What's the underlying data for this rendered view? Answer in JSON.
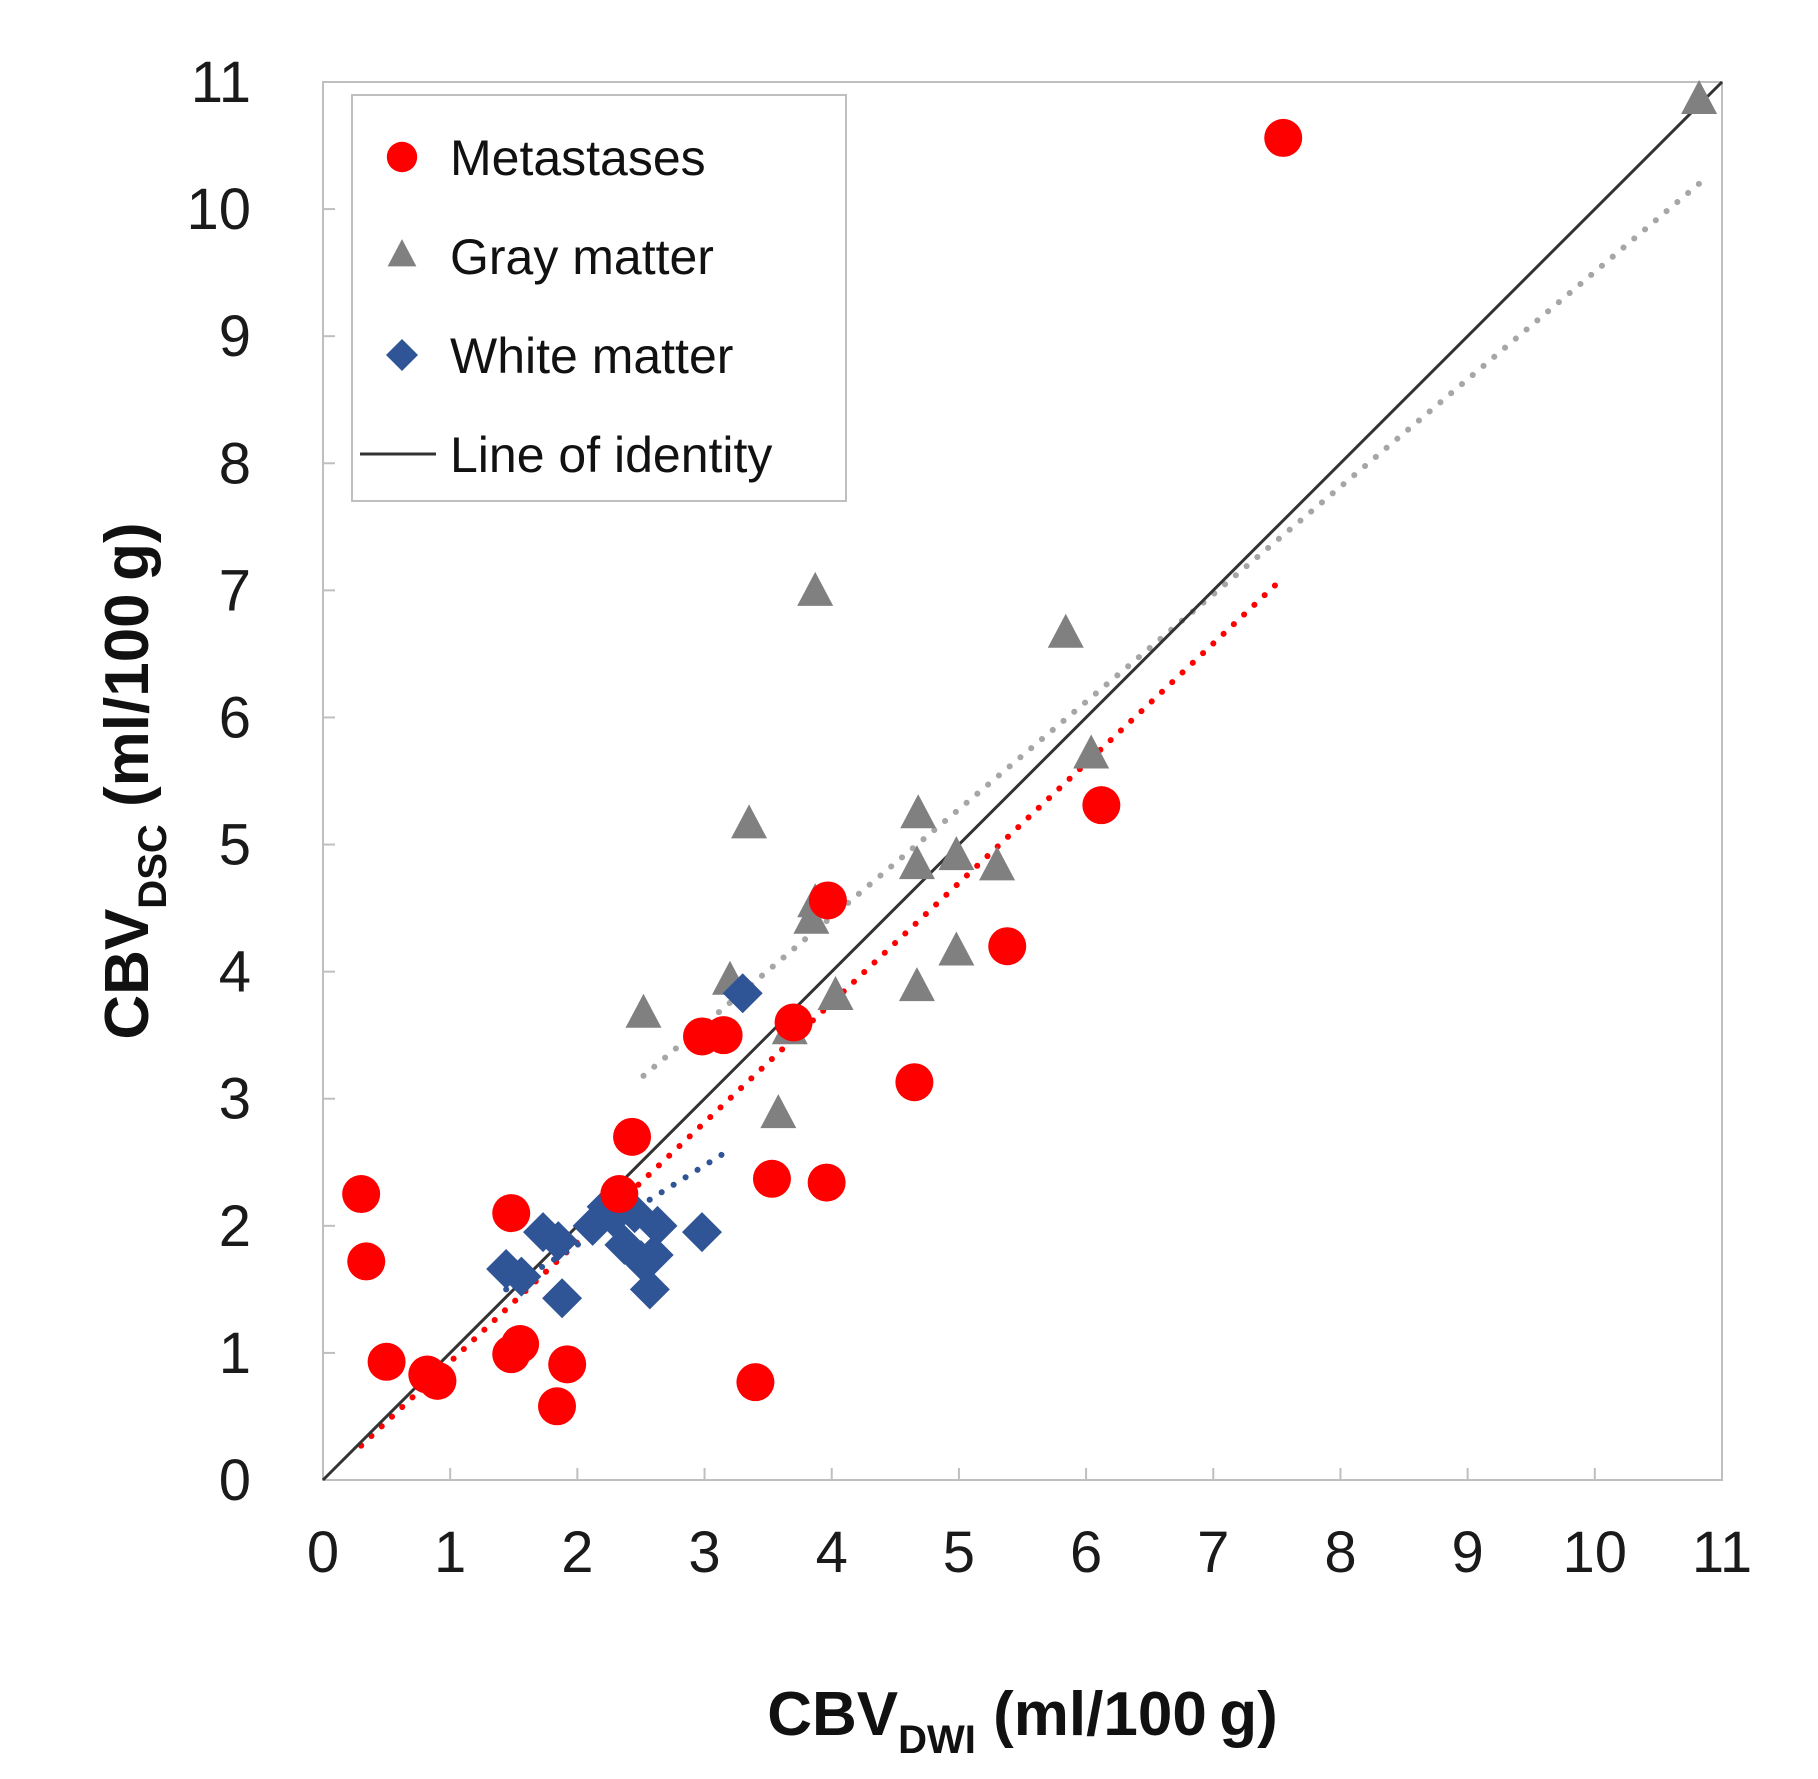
{
  "chart_data": {
    "type": "scatter",
    "title": "",
    "xlabel": {
      "main": "CBV",
      "sub": "DWI",
      "unit": " (ml/100 g)"
    },
    "ylabel": {
      "main": "CBV",
      "sub": "DSC",
      "unit": " (ml/100 g)"
    },
    "xlim": [
      0,
      11
    ],
    "ylim": [
      0,
      11
    ],
    "xticks": [
      "0",
      "1",
      "2",
      "3",
      "4",
      "5",
      "6",
      "7",
      "8",
      "9",
      "10",
      "11"
    ],
    "yticks": [
      "0",
      "1",
      "2",
      "3",
      "4",
      "5",
      "6",
      "7",
      "8",
      "9",
      "10",
      "11"
    ],
    "grid": false,
    "legend_position": "top-left",
    "colors": {
      "metastases": "#ff0000",
      "gray_matter": "#808080",
      "white_matter": "#2f5597",
      "identity": "#333333",
      "frame": "#bfbfbf"
    },
    "series": [
      {
        "name": "Metastases",
        "marker": "circle",
        "color": "#ff0000",
        "points": [
          [
            0.3,
            2.25
          ],
          [
            0.34,
            1.72
          ],
          [
            0.5,
            0.93
          ],
          [
            0.82,
            0.83
          ],
          [
            0.9,
            0.78
          ],
          [
            1.48,
            2.1
          ],
          [
            1.48,
            0.99
          ],
          [
            1.55,
            1.07
          ],
          [
            1.84,
            0.58
          ],
          [
            1.92,
            0.91
          ],
          [
            2.33,
            2.25
          ],
          [
            2.43,
            2.7
          ],
          [
            2.98,
            3.49
          ],
          [
            3.15,
            3.5
          ],
          [
            3.4,
            0.77
          ],
          [
            3.53,
            2.37
          ],
          [
            3.7,
            3.6
          ],
          [
            3.96,
            2.34
          ],
          [
            3.97,
            4.56
          ],
          [
            4.65,
            3.13
          ],
          [
            5.38,
            4.2
          ],
          [
            6.12,
            5.31
          ],
          [
            7.55,
            10.56
          ]
        ]
      },
      {
        "name": "Gray matter",
        "marker": "triangle",
        "color": "#808080",
        "points": [
          [
            2.52,
            3.66
          ],
          [
            3.2,
            3.92
          ],
          [
            3.35,
            5.15
          ],
          [
            3.58,
            2.87
          ],
          [
            3.67,
            3.53
          ],
          [
            3.84,
            4.4
          ],
          [
            3.87,
            4.53
          ],
          [
            3.87,
            6.98
          ],
          [
            4.03,
            3.8
          ],
          [
            4.67,
            3.87
          ],
          [
            4.67,
            4.83
          ],
          [
            4.68,
            5.23
          ],
          [
            4.98,
            4.15
          ],
          [
            4.98,
            4.9
          ],
          [
            5.3,
            4.82
          ],
          [
            5.84,
            6.65
          ],
          [
            6.04,
            5.7
          ],
          [
            10.82,
            10.85
          ]
        ]
      },
      {
        "name": "White matter",
        "marker": "diamond",
        "color": "#2f5597",
        "points": [
          [
            1.44,
            1.66
          ],
          [
            1.56,
            1.6
          ],
          [
            1.73,
            1.95
          ],
          [
            1.85,
            1.88
          ],
          [
            1.88,
            1.43
          ],
          [
            2.12,
            2.0
          ],
          [
            2.23,
            2.15
          ],
          [
            2.28,
            2.07
          ],
          [
            2.37,
            1.85
          ],
          [
            2.45,
            2.1
          ],
          [
            2.5,
            1.73
          ],
          [
            2.57,
            1.5
          ],
          [
            2.6,
            1.77
          ],
          [
            2.63,
            2.0
          ],
          [
            2.98,
            1.95
          ],
          [
            3.3,
            3.83
          ]
        ]
      }
    ],
    "identity_line": {
      "name": "Line of identity",
      "from": [
        0,
        0
      ],
      "to": [
        11,
        11
      ]
    },
    "trend_lines": [
      {
        "series": "Gray matter",
        "from": [
          2.52,
          3.18
        ],
        "to": [
          10.82,
          10.2
        ]
      },
      {
        "series": "Metastases",
        "from": [
          0.3,
          0.27
        ],
        "to": [
          7.55,
          7.1
        ]
      },
      {
        "series": "White matter",
        "from": [
          1.44,
          1.5
        ],
        "to": [
          3.2,
          2.6
        ]
      }
    ],
    "legend": [
      {
        "label": "Metastases",
        "marker": "circle"
      },
      {
        "label": "Gray matter",
        "marker": "triangle"
      },
      {
        "label": "White matter",
        "marker": "diamond"
      },
      {
        "label": "Line of identity",
        "marker": "line"
      }
    ]
  }
}
